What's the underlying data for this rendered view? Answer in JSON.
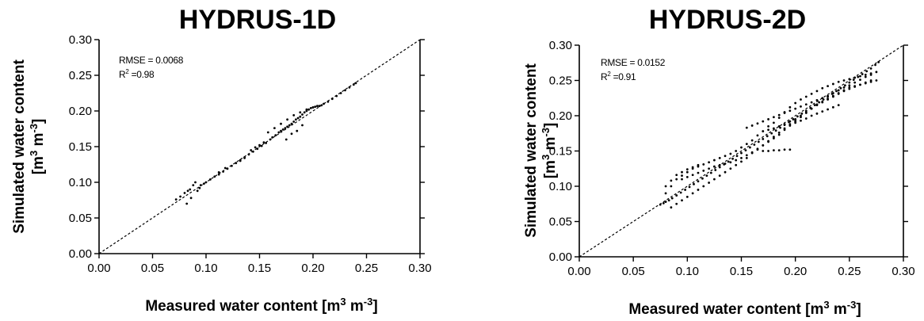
{
  "chart_data": [
    {
      "type": "scatter",
      "title": "HYDRUS-1D",
      "xlabel": {
        "main": "Measured water content [m",
        "sup1": "3",
        "mid": " m",
        "sup2": "-3",
        "end": "]"
      },
      "ylabel": {
        "line1": "Simulated water content",
        "pre": "[m",
        "sup1": "3",
        "mid": " m",
        "sup2": "-3",
        "end": "]"
      },
      "xlim": [
        0,
        0.3
      ],
      "ylim": [
        0,
        0.3
      ],
      "xticks": [
        "0.00",
        "0.05",
        "0.10",
        "0.15",
        "0.20",
        "0.25",
        "0.30"
      ],
      "yticks": [
        "0.00",
        "0.05",
        "0.10",
        "0.15",
        "0.20",
        "0.25",
        "0.30"
      ],
      "annotations": {
        "rmse": "RMSE = 0.0068",
        "r2_label": "R",
        "r2_sup": "2",
        "r2_value": " =0.98"
      },
      "reference_line": "1:1 dashed",
      "series": [
        {
          "x": [
            0.072,
            0.076,
            0.08,
            0.083,
            0.085,
            0.088,
            0.09,
            0.082,
            0.086,
            0.092,
            0.095,
            0.1,
            0.104,
            0.108,
            0.112,
            0.116,
            0.12,
            0.124,
            0.128,
            0.132,
            0.136,
            0.14,
            0.144,
            0.148,
            0.152,
            0.156,
            0.16,
            0.162,
            0.165,
            0.168,
            0.17,
            0.172,
            0.174,
            0.176,
            0.178,
            0.18,
            0.182,
            0.184,
            0.186,
            0.188,
            0.19,
            0.192,
            0.194,
            0.196,
            0.198,
            0.2,
            0.202,
            0.204,
            0.206,
            0.208,
            0.21,
            0.214,
            0.218,
            0.222,
            0.226,
            0.23,
            0.234,
            0.238,
            0.24,
            0.158,
            0.164,
            0.17,
            0.176,
            0.182,
            0.188,
            0.194,
            0.2,
            0.175,
            0.18,
            0.185,
            0.19,
            0.142,
            0.146,
            0.15,
            0.154,
            0.132,
            0.136,
            0.112,
            0.118,
            0.098,
            0.094
          ],
          "y": [
            0.076,
            0.08,
            0.085,
            0.088,
            0.09,
            0.096,
            0.1,
            0.07,
            0.078,
            0.088,
            0.096,
            0.1,
            0.104,
            0.108,
            0.111,
            0.115,
            0.119,
            0.123,
            0.127,
            0.131,
            0.135,
            0.139,
            0.143,
            0.147,
            0.151,
            0.155,
            0.16,
            0.163,
            0.166,
            0.17,
            0.172,
            0.174,
            0.176,
            0.178,
            0.18,
            0.182,
            0.185,
            0.188,
            0.19,
            0.192,
            0.195,
            0.198,
            0.2,
            0.202,
            0.204,
            0.205,
            0.206,
            0.207,
            0.207,
            0.208,
            0.21,
            0.213,
            0.217,
            0.221,
            0.225,
            0.229,
            0.233,
            0.237,
            0.239,
            0.17,
            0.176,
            0.182,
            0.188,
            0.194,
            0.198,
            0.202,
            0.205,
            0.16,
            0.168,
            0.172,
            0.18,
            0.145,
            0.149,
            0.152,
            0.156,
            0.13,
            0.134,
            0.114,
            0.12,
            0.098,
            0.092
          ]
        }
      ]
    },
    {
      "type": "scatter",
      "title": "HYDRUS-2D",
      "xlabel": {
        "main": "Measured water content [m",
        "sup1": "3",
        "mid": " m",
        "sup2": "-3",
        "end": "]"
      },
      "ylabel": {
        "line1": "Simulated water content",
        "pre": "[m",
        "sup1": "3",
        "mid": " m",
        "sup2": "-3",
        "end": "]"
      },
      "xlim": [
        0,
        0.3
      ],
      "ylim": [
        0,
        0.3
      ],
      "xticks": [
        "0.00",
        "0.05",
        "0.10",
        "0.15",
        "0.20",
        "0.25",
        "0.30"
      ],
      "yticks": [
        "0.00",
        "0.05",
        "0.10",
        "0.15",
        "0.20",
        "0.25",
        "0.30"
      ],
      "annotations": {
        "rmse": "RMSE = 0.0152",
        "r2_label": "R",
        "r2_sup": "2",
        "r2_value": " =0.91"
      },
      "reference_line": "1:1 dashed",
      "series": [
        {
          "x": [
            0.075,
            0.078,
            0.08,
            0.083,
            0.086,
            0.09,
            0.094,
            0.098,
            0.102,
            0.106,
            0.11,
            0.114,
            0.118,
            0.122,
            0.126,
            0.13,
            0.134,
            0.138,
            0.142,
            0.146,
            0.15,
            0.154,
            0.158,
            0.162,
            0.166,
            0.17,
            0.174,
            0.178,
            0.182,
            0.186,
            0.19,
            0.194,
            0.198,
            0.202,
            0.206,
            0.21,
            0.214,
            0.218,
            0.222,
            0.226,
            0.23,
            0.234,
            0.238,
            0.242,
            0.246,
            0.25,
            0.254,
            0.258,
            0.262,
            0.266,
            0.27,
            0.274,
            0.277,
            0.08,
            0.085,
            0.09,
            0.095,
            0.1,
            0.105,
            0.11,
            0.115,
            0.12,
            0.125,
            0.13,
            0.135,
            0.14,
            0.145,
            0.15,
            0.155,
            0.16,
            0.165,
            0.17,
            0.175,
            0.18,
            0.185,
            0.19,
            0.195,
            0.2,
            0.205,
            0.21,
            0.215,
            0.22,
            0.225,
            0.23,
            0.235,
            0.24,
            0.245,
            0.25,
            0.255,
            0.26,
            0.265,
            0.27,
            0.085,
            0.09,
            0.095,
            0.1,
            0.105,
            0.11,
            0.115,
            0.12,
            0.125,
            0.13,
            0.135,
            0.14,
            0.145,
            0.15,
            0.155,
            0.16,
            0.165,
            0.17,
            0.175,
            0.18,
            0.185,
            0.19,
            0.195,
            0.2,
            0.205,
            0.21,
            0.215,
            0.22,
            0.225,
            0.23,
            0.235,
            0.24,
            0.245,
            0.25,
            0.255,
            0.26,
            0.265,
            0.27,
            0.275,
            0.095,
            0.1,
            0.105,
            0.11,
            0.115,
            0.12,
            0.125,
            0.13,
            0.135,
            0.14,
            0.145,
            0.15,
            0.155,
            0.16,
            0.165,
            0.17,
            0.175,
            0.18,
            0.185,
            0.19,
            0.195,
            0.2,
            0.205,
            0.21,
            0.215,
            0.22,
            0.225,
            0.23,
            0.235,
            0.24,
            0.245,
            0.25,
            0.255,
            0.26,
            0.265,
            0.27,
            0.155,
            0.16,
            0.165,
            0.17,
            0.175,
            0.18,
            0.185,
            0.19,
            0.195,
            0.2,
            0.205,
            0.21,
            0.215,
            0.22,
            0.225,
            0.23,
            0.235,
            0.24,
            0.245,
            0.25,
            0.255,
            0.26,
            0.265,
            0.27,
            0.275,
            0.2,
            0.205,
            0.21,
            0.215,
            0.22,
            0.225,
            0.23,
            0.235,
            0.24,
            0.175,
            0.18,
            0.185,
            0.19,
            0.195,
            0.2,
            0.17,
            0.175,
            0.18,
            0.185,
            0.19,
            0.195,
            0.08,
            0.085,
            0.09,
            0.095,
            0.1,
            0.105,
            0.11
          ],
          "y": [
            0.074,
            0.076,
            0.078,
            0.08,
            0.083,
            0.087,
            0.091,
            0.095,
            0.099,
            0.103,
            0.107,
            0.111,
            0.115,
            0.119,
            0.123,
            0.127,
            0.131,
            0.135,
            0.139,
            0.143,
            0.147,
            0.151,
            0.155,
            0.159,
            0.163,
            0.167,
            0.171,
            0.175,
            0.179,
            0.183,
            0.187,
            0.191,
            0.195,
            0.199,
            0.203,
            0.207,
            0.211,
            0.215,
            0.219,
            0.223,
            0.227,
            0.231,
            0.235,
            0.239,
            0.243,
            0.247,
            0.251,
            0.255,
            0.259,
            0.263,
            0.267,
            0.272,
            0.276,
            0.09,
            0.1,
            0.11,
            0.115,
            0.12,
            0.125,
            0.128,
            0.131,
            0.134,
            0.137,
            0.14,
            0.143,
            0.146,
            0.15,
            0.155,
            0.16,
            0.165,
            0.172,
            0.178,
            0.185,
            0.19,
            0.197,
            0.205,
            0.212,
            0.218,
            0.223,
            0.227,
            0.231,
            0.235,
            0.239,
            0.242,
            0.245,
            0.248,
            0.25,
            0.252,
            0.254,
            0.256,
            0.258,
            0.26,
            0.07,
            0.075,
            0.08,
            0.085,
            0.09,
            0.095,
            0.1,
            0.105,
            0.11,
            0.115,
            0.12,
            0.125,
            0.13,
            0.135,
            0.14,
            0.147,
            0.152,
            0.158,
            0.163,
            0.168,
            0.173,
            0.18,
            0.186,
            0.192,
            0.198,
            0.204,
            0.21,
            0.216,
            0.22,
            0.224,
            0.228,
            0.232,
            0.236,
            0.24,
            0.242,
            0.244,
            0.246,
            0.248,
            0.25,
            0.11,
            0.113,
            0.116,
            0.119,
            0.122,
            0.125,
            0.128,
            0.13,
            0.132,
            0.134,
            0.137,
            0.14,
            0.144,
            0.148,
            0.153,
            0.158,
            0.164,
            0.17,
            0.176,
            0.182,
            0.188,
            0.194,
            0.2,
            0.205,
            0.21,
            0.215,
            0.219,
            0.223,
            0.227,
            0.231,
            0.235,
            0.238,
            0.241,
            0.244,
            0.247,
            0.25,
            0.183,
            0.186,
            0.189,
            0.192,
            0.195,
            0.198,
            0.201,
            0.204,
            0.207,
            0.21,
            0.213,
            0.216,
            0.219,
            0.222,
            0.225,
            0.228,
            0.232,
            0.236,
            0.24,
            0.243,
            0.247,
            0.251,
            0.255,
            0.258,
            0.262,
            0.19,
            0.193,
            0.196,
            0.2,
            0.203,
            0.206,
            0.209,
            0.212,
            0.215,
            0.18,
            0.182,
            0.185,
            0.188,
            0.192,
            0.195,
            0.15,
            0.15,
            0.151,
            0.151,
            0.152,
            0.152,
            0.1,
            0.108,
            0.116,
            0.12,
            0.124,
            0.127,
            0.13
          ]
        }
      ]
    }
  ]
}
